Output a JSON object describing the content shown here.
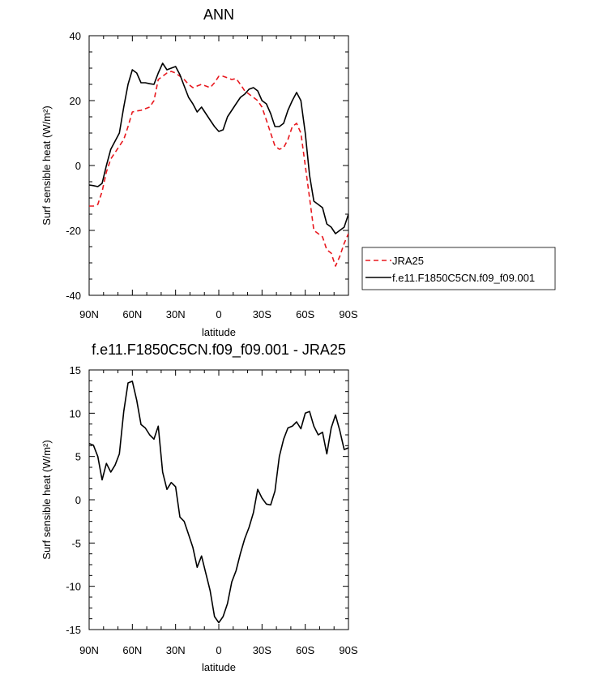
{
  "chart_data": [
    {
      "type": "line",
      "title": "ANN",
      "xlabel": "latitude",
      "ylabel": "Surf sensible heat (W/m²)",
      "xlim": [
        90,
        -90
      ],
      "ylim": [
        -40,
        40
      ],
      "xticks": [
        90,
        60,
        30,
        0,
        -30,
        -60,
        -90
      ],
      "xtick_labels": [
        "90N",
        "60N",
        "30N",
        "0",
        "30S",
        "60S",
        "90S"
      ],
      "yticks": [
        -40,
        -20,
        0,
        20,
        40
      ],
      "ytick_labels": [
        "-40",
        "-20",
        "0",
        "20",
        "40"
      ],
      "legend": {
        "placement": "right"
      },
      "series": [
        {
          "name": "JRA25",
          "color": "#e8181e",
          "dash": "dashed",
          "x": [
            90,
            87,
            84,
            81,
            78,
            75,
            72,
            69,
            66,
            63,
            60,
            57,
            54,
            51,
            48,
            45,
            42,
            39,
            36,
            33,
            30,
            27,
            24,
            21,
            18,
            15,
            12,
            9,
            6,
            3,
            0,
            -3,
            -6,
            -9,
            -12,
            -15,
            -18,
            -21,
            -24,
            -27,
            -30,
            -33,
            -36,
            -39,
            -42,
            -45,
            -48,
            -51,
            -54,
            -57,
            -60,
            -63,
            -66,
            -69,
            -72,
            -75,
            -78,
            -81,
            -84,
            -87,
            -90
          ],
          "y": [
            -12.5,
            -12.5,
            -12,
            -8,
            -2,
            2,
            4,
            6,
            8,
            12,
            16.5,
            16.8,
            17,
            17.5,
            18,
            20,
            26.5,
            27.5,
            28.5,
            29,
            28.5,
            27.5,
            26.5,
            25,
            24,
            24.5,
            25,
            24.5,
            24,
            25.5,
            27.5,
            27.5,
            27,
            26.5,
            26.8,
            25,
            23,
            22,
            21,
            20,
            18,
            14,
            10,
            6,
            5,
            5.5,
            8,
            12,
            13,
            10,
            0,
            -10,
            -20,
            -21,
            -22,
            -26,
            -27,
            -31,
            -28,
            -24,
            -21
          ]
        },
        {
          "name": "f.e11.F1850C5CN.f09_f09.001",
          "color": "#000000",
          "dash": "solid",
          "x": [
            90,
            87,
            84,
            81,
            78,
            75,
            72,
            69,
            66,
            63,
            60,
            57,
            54,
            51,
            48,
            45,
            42,
            39,
            36,
            33,
            30,
            27,
            24,
            21,
            18,
            15,
            12,
            9,
            6,
            3,
            0,
            -3,
            -6,
            -9,
            -12,
            -15,
            -18,
            -21,
            -24,
            -27,
            -30,
            -33,
            -36,
            -39,
            -42,
            -45,
            -48,
            -51,
            -54,
            -57,
            -60,
            -63,
            -66,
            -69,
            -72,
            -75,
            -78,
            -81,
            -84,
            -87,
            -90
          ],
          "y": [
            -6,
            -6.2,
            -6.5,
            -5.5,
            0,
            5,
            7.5,
            10,
            18,
            25,
            29.5,
            28.5,
            25.5,
            25.5,
            25.2,
            25,
            28.5,
            31.5,
            29.5,
            30,
            30.5,
            28,
            24.5,
            21,
            19,
            16.5,
            18,
            16,
            14,
            12,
            10.5,
            11,
            15,
            17,
            19,
            21,
            22,
            23.5,
            24,
            23,
            20,
            19,
            16,
            12,
            12,
            13,
            17,
            20,
            22.5,
            20,
            10,
            -3,
            -11,
            -12,
            -13,
            -18,
            -19,
            -21,
            -20,
            -19,
            -15
          ]
        }
      ]
    },
    {
      "type": "line",
      "title": "f.e11.F1850C5CN.f09_f09.001 - JRA25",
      "xlabel": "latitude",
      "ylabel": "Surf sensible heat (W/m²)",
      "xlim": [
        90,
        -90
      ],
      "ylim": [
        -15,
        15
      ],
      "xticks": [
        90,
        60,
        30,
        0,
        -30,
        -60,
        -90
      ],
      "xtick_labels": [
        "90N",
        "60N",
        "30N",
        "0",
        "30S",
        "60S",
        "90S"
      ],
      "yticks": [
        -15,
        -10,
        -5,
        0,
        5,
        10,
        15
      ],
      "ytick_labels": [
        "-15",
        "-10",
        "-5",
        "0",
        "5",
        "10",
        "15"
      ],
      "series": [
        {
          "color": "#000000",
          "dash": "solid",
          "x": [
            90,
            87,
            84,
            81,
            78,
            75,
            72,
            69,
            66,
            63,
            60,
            57,
            54,
            51,
            48,
            45,
            42,
            39,
            36,
            33,
            30,
            27,
            24,
            21,
            18,
            15,
            12,
            9,
            6,
            3,
            0,
            -3,
            -6,
            -9,
            -12,
            -15,
            -18,
            -21,
            -24,
            -27,
            -30,
            -33,
            -36,
            -39,
            -42,
            -45,
            -48,
            -51,
            -54,
            -57,
            -60,
            -63,
            -66,
            -69,
            -72,
            -75,
            -78,
            -81,
            -84,
            -87,
            -90
          ],
          "y": [
            6.5,
            6.3,
            5,
            2.3,
            4.2,
            3.2,
            4,
            5.3,
            10.2,
            13.5,
            13.7,
            11.5,
            8.7,
            8.3,
            7.5,
            7,
            8.5,
            3.2,
            1.2,
            2,
            1.5,
            -2,
            -2.5,
            -4,
            -5.5,
            -7.8,
            -6.5,
            -8.5,
            -10.5,
            -13.5,
            -14.2,
            -13.5,
            -12,
            -9.5,
            -8.2,
            -6.2,
            -4.5,
            -3.2,
            -1.5,
            1.2,
            0.2,
            -0.5,
            -0.6,
            1,
            5,
            7,
            8.3,
            8.5,
            9,
            8.2,
            10,
            10.2,
            8.5,
            7.5,
            7.8,
            5.3,
            8.3,
            9.8,
            8,
            5.8,
            6.0
          ]
        }
      ]
    }
  ]
}
